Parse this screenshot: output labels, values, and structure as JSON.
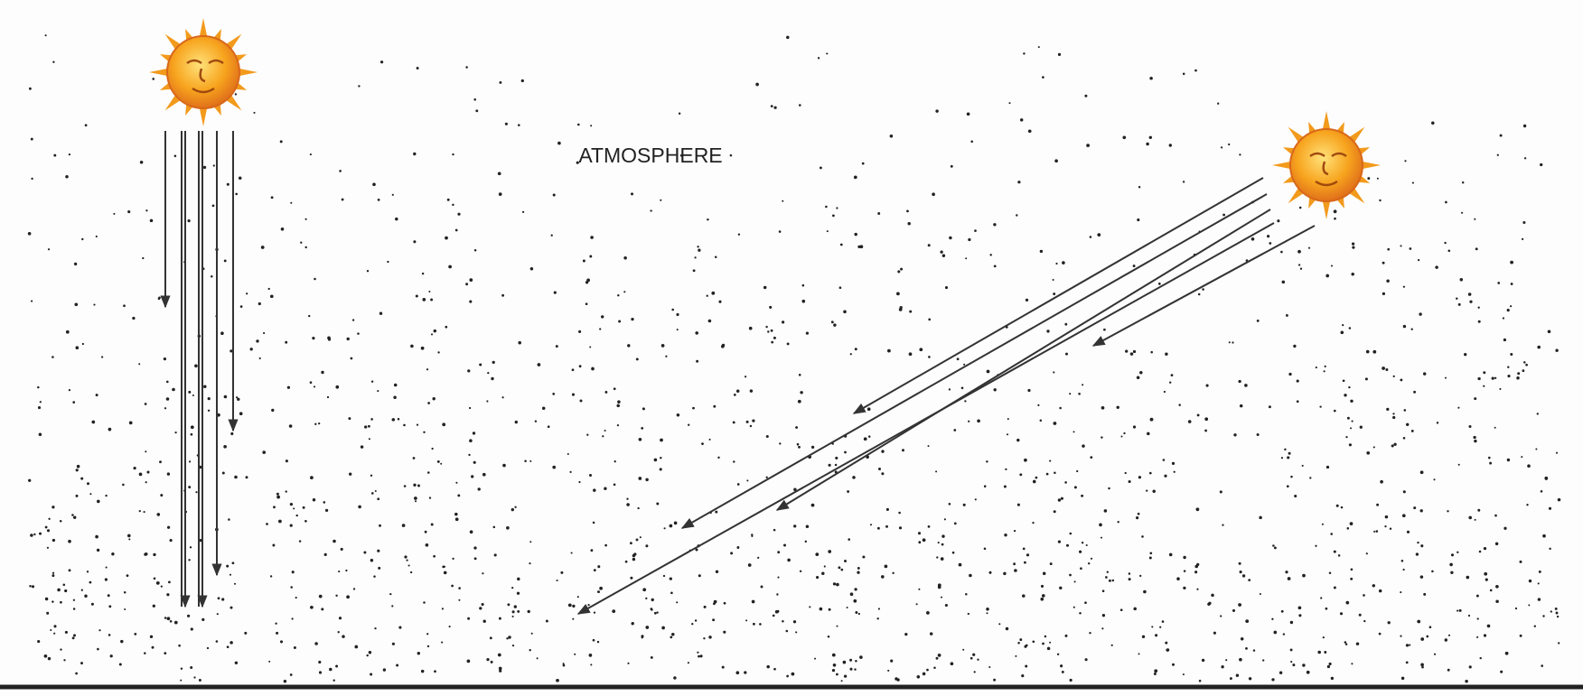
{
  "diagram": {
    "label": "ATMOSPHERE"
  }
}
